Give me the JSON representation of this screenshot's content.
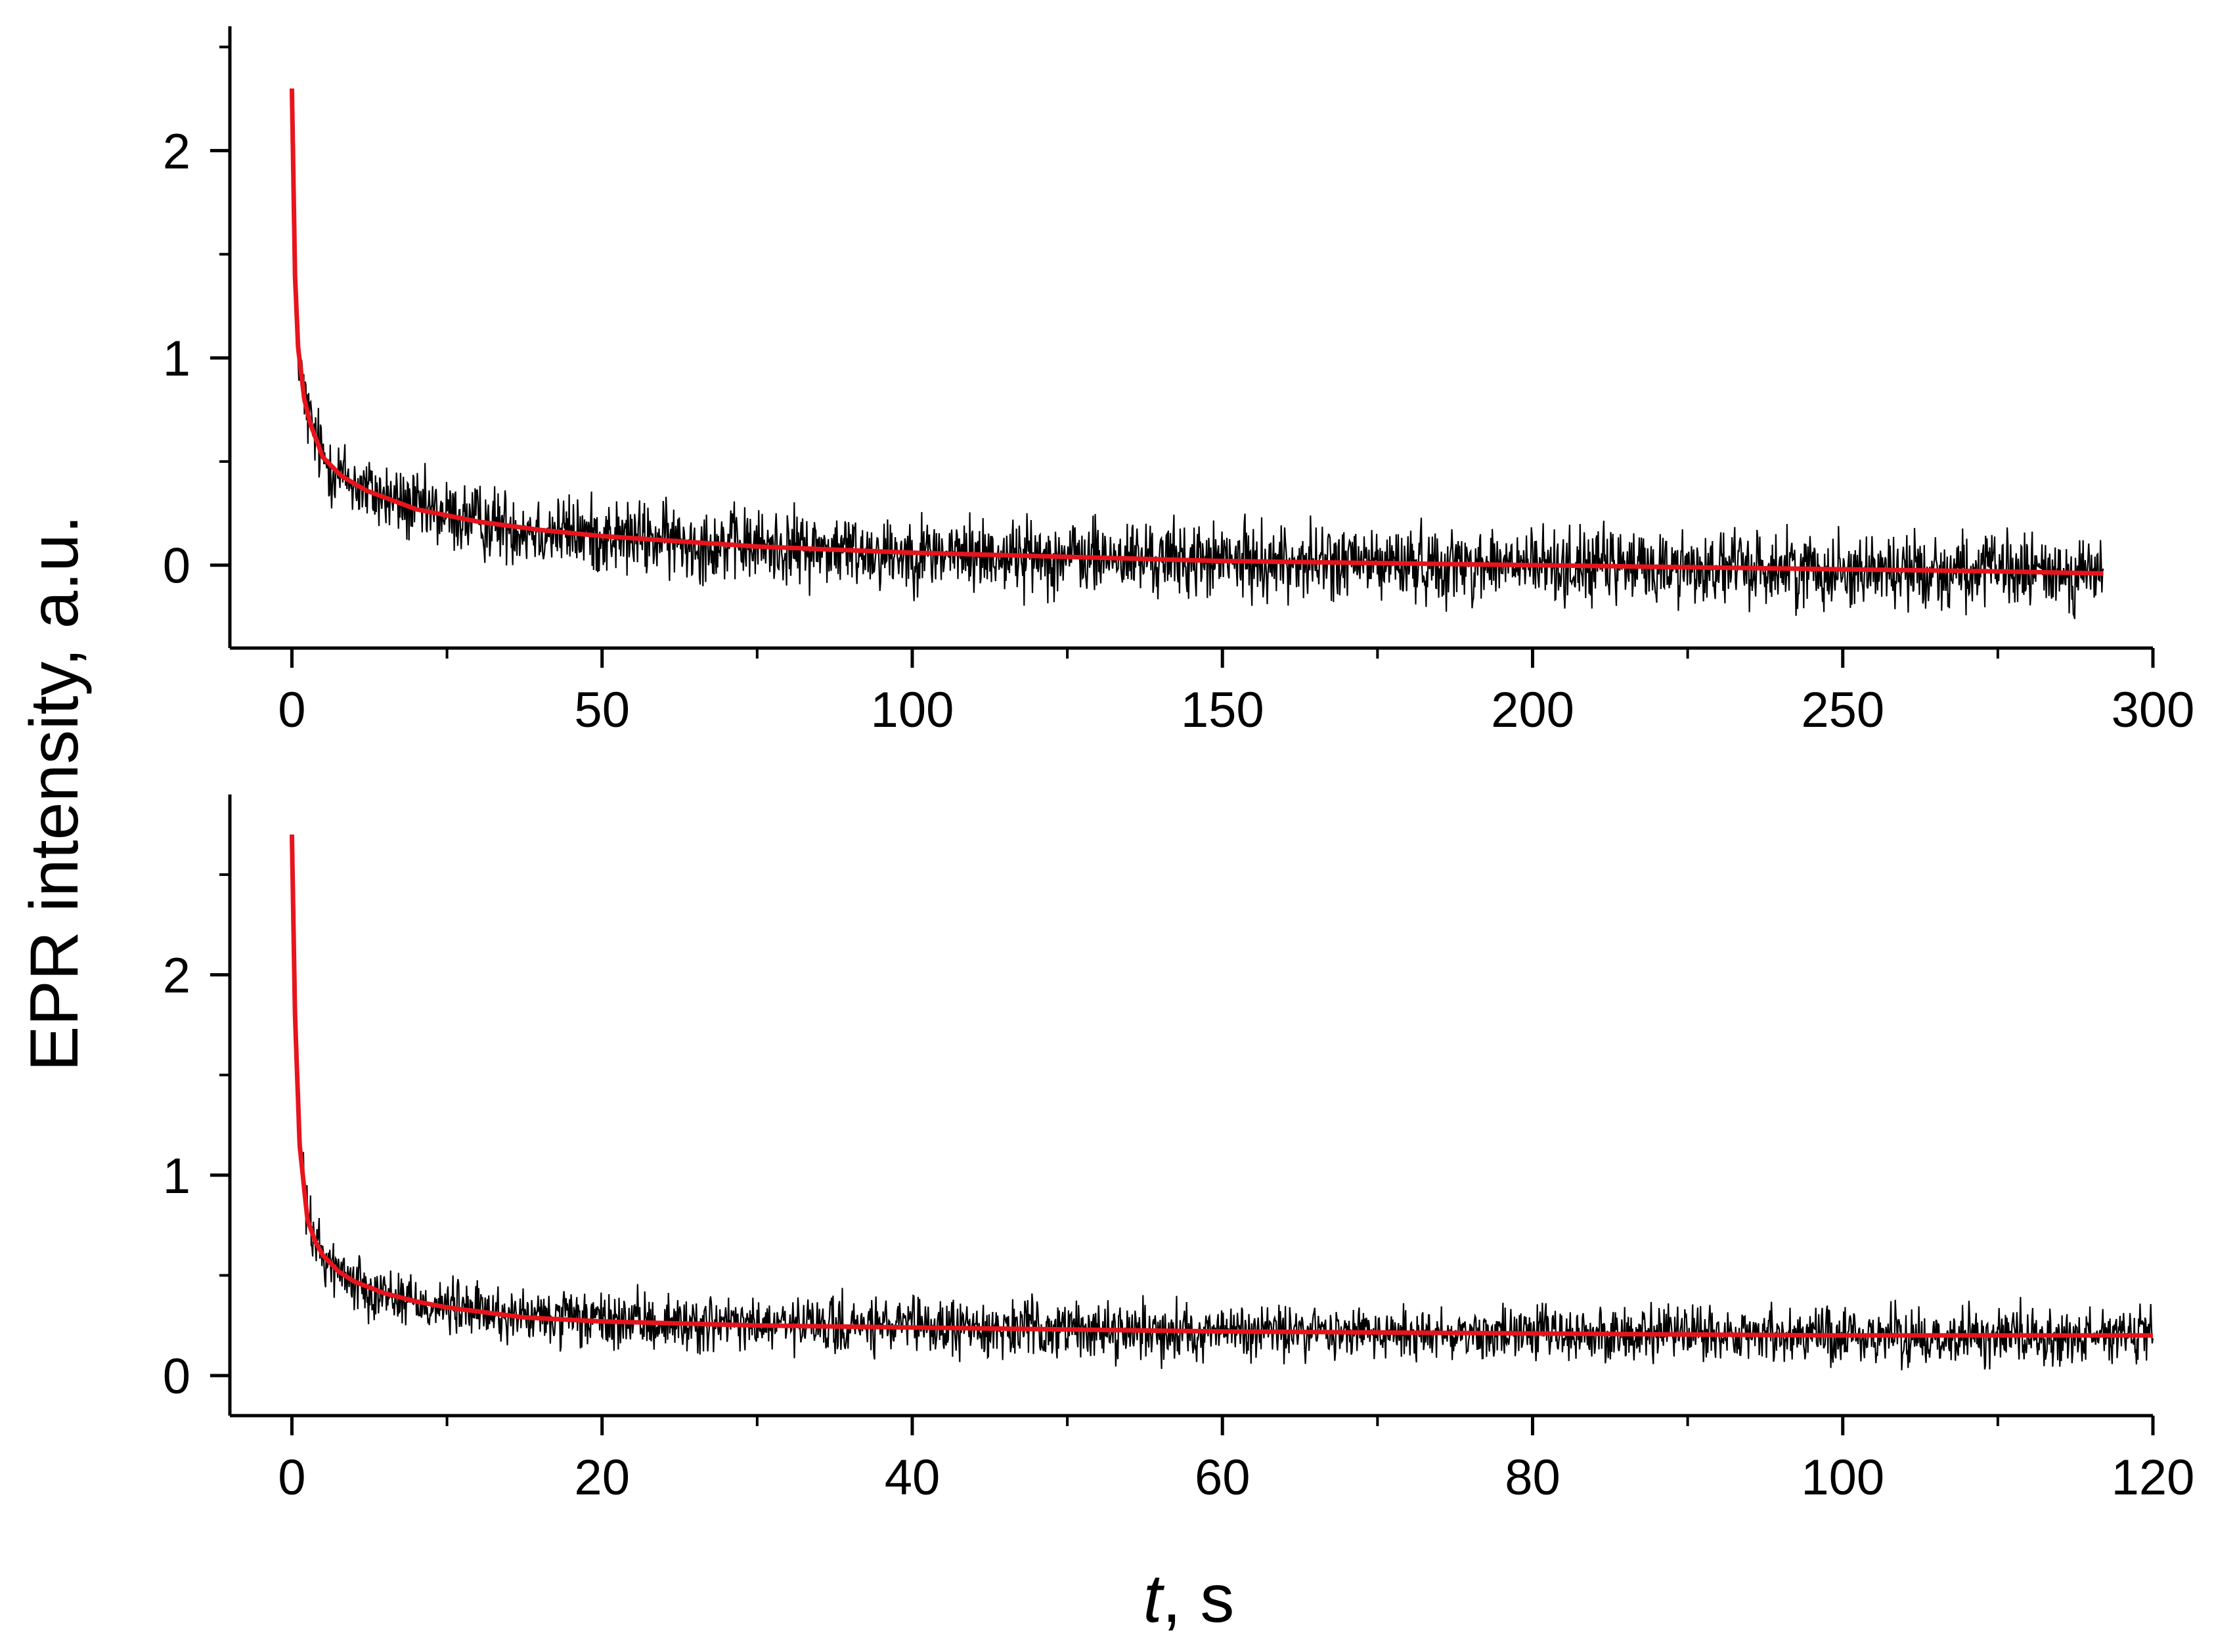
{
  "figure": {
    "ylabel": "EPR intensity, a.u.",
    "xlabel_var": "t",
    "xlabel_unit": ", s"
  },
  "chart_data": [
    {
      "type": "line",
      "xlabel": "t, s",
      "ylabel": "EPR intensity, a.u.",
      "xlim": [
        -10,
        300
      ],
      "ylim": [
        -0.4,
        2.6
      ],
      "x_ticks": [
        0,
        50,
        100,
        150,
        200,
        250,
        300
      ],
      "y_ticks": [
        0,
        1,
        2
      ],
      "grid": false,
      "colors": {
        "data": "#000000",
        "fit": "#e8141c"
      },
      "series": [
        {
          "kind": "experimental",
          "x_range": [
            0,
            292
          ],
          "noise_amplitude": 0.09,
          "x": [
            0,
            0.5,
            1,
            2,
            3,
            5,
            8,
            12,
            20,
            30,
            40,
            50,
            60,
            75,
            100,
            125,
            150,
            175,
            200,
            225,
            250,
            275,
            292
          ],
          "values": [
            2.3,
            1.4,
            1.05,
            0.8,
            0.68,
            0.52,
            0.43,
            0.36,
            0.27,
            0.21,
            0.17,
            0.14,
            0.12,
            0.09,
            0.06,
            0.04,
            0.02,
            0.01,
            0.0,
            -0.01,
            -0.02,
            -0.03,
            -0.04
          ]
        },
        {
          "kind": "fit",
          "x": [
            0,
            0.5,
            1,
            2,
            3,
            5,
            8,
            12,
            20,
            30,
            40,
            50,
            60,
            75,
            100,
            125,
            150,
            175,
            200,
            225,
            250,
            275,
            292
          ],
          "values": [
            2.3,
            1.4,
            1.05,
            0.8,
            0.68,
            0.52,
            0.43,
            0.36,
            0.27,
            0.21,
            0.17,
            0.14,
            0.12,
            0.09,
            0.06,
            0.04,
            0.02,
            0.01,
            0.0,
            -0.01,
            -0.02,
            -0.03,
            -0.04
          ]
        }
      ]
    },
    {
      "type": "line",
      "xlabel": "t, s",
      "ylabel": "EPR intensity, a.u.",
      "xlim": [
        -4,
        120
      ],
      "ylim": [
        -0.2,
        2.9
      ],
      "x_ticks": [
        0,
        20,
        40,
        60,
        80,
        100,
        120
      ],
      "y_ticks": [
        0,
        1,
        2
      ],
      "grid": false,
      "colors": {
        "data": "#000000",
        "fit": "#e8141c"
      },
      "series": [
        {
          "kind": "experimental",
          "x_range": [
            0,
            120
          ],
          "noise_amplitude": 0.07,
          "x": [
            0,
            0.2,
            0.5,
            1,
            1.5,
            2,
            3,
            4,
            6,
            8,
            10,
            15,
            20,
            30,
            40,
            60,
            80,
            100,
            120
          ],
          "values": [
            2.7,
            1.8,
            1.15,
            0.78,
            0.67,
            0.6,
            0.52,
            0.47,
            0.41,
            0.37,
            0.34,
            0.29,
            0.27,
            0.25,
            0.24,
            0.22,
            0.21,
            0.2,
            0.2
          ]
        },
        {
          "kind": "fit",
          "x": [
            0,
            0.2,
            0.5,
            1,
            1.5,
            2,
            3,
            4,
            6,
            8,
            10,
            15,
            20,
            30,
            40,
            60,
            80,
            100,
            120
          ],
          "values": [
            2.7,
            1.8,
            1.15,
            0.78,
            0.67,
            0.6,
            0.52,
            0.47,
            0.41,
            0.37,
            0.34,
            0.29,
            0.27,
            0.25,
            0.24,
            0.22,
            0.21,
            0.2,
            0.2
          ]
        }
      ]
    }
  ]
}
